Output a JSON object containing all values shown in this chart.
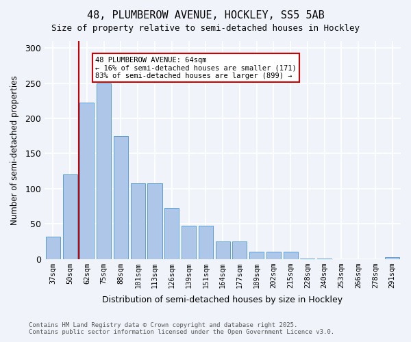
{
  "title_line1": "48, PLUMBEROW AVENUE, HOCKLEY, SS5 5AB",
  "title_line2": "Size of property relative to semi-detached houses in Hockley",
  "xlabel": "Distribution of semi-detached houses by size in Hockley",
  "ylabel": "Number of semi-detached properties",
  "categories": [
    "37sqm",
    "50sqm",
    "62sqm",
    "75sqm",
    "88sqm",
    "101sqm",
    "113sqm",
    "126sqm",
    "139sqm",
    "151sqm",
    "164sqm",
    "177sqm",
    "189sqm",
    "202sqm",
    "215sqm",
    "228sqm",
    "240sqm",
    "253sqm",
    "266sqm",
    "278sqm",
    "291sqm"
  ],
  "values": [
    32,
    120,
    222,
    250,
    175,
    108,
    108,
    73,
    47,
    47,
    25,
    25,
    10,
    10,
    10,
    1,
    1,
    0,
    0,
    0,
    2
  ],
  "bar_color": "#aec6e8",
  "bar_edge_color": "#5a9fd4",
  "highlight_bar_index": 2,
  "highlight_color": "#cc0000",
  "annotation_title": "48 PLUMBEROW AVENUE: 64sqm",
  "annotation_line2": "← 16% of semi-detached houses are smaller (171)",
  "annotation_line3": "83% of semi-detached houses are larger (899) →",
  "footnote_line1": "Contains HM Land Registry data © Crown copyright and database right 2025.",
  "footnote_line2": "Contains public sector information licensed under the Open Government Licence v3.0.",
  "bg_color": "#f0f4fa",
  "plot_bg_color": "#f0f4fa",
  "grid_color": "#ffffff",
  "ylim": [
    0,
    310
  ],
  "yticks": [
    0,
    50,
    100,
    150,
    200,
    250,
    300
  ]
}
